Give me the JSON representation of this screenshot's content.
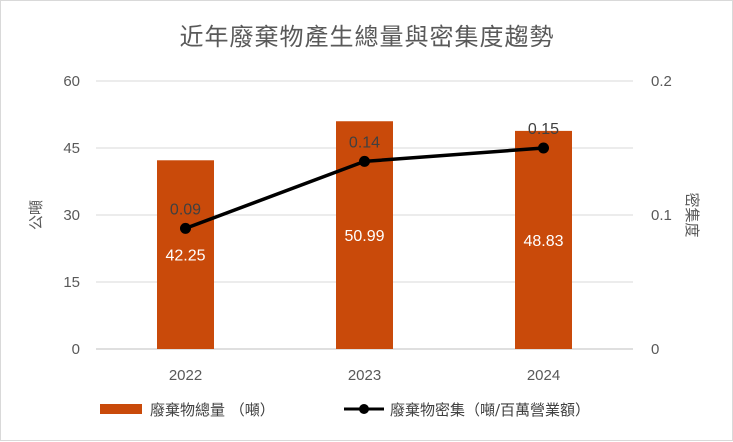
{
  "chart_data": {
    "type": "bar",
    "title": "近年廢棄物產生總量與密集度趨勢",
    "categories": [
      "2022",
      "2023",
      "2024"
    ],
    "ylabel": "公噸",
    "ylabel_right": "密集度",
    "ylim": [
      0,
      60
    ],
    "yticks": [
      "0",
      "15",
      "30",
      "45",
      "60"
    ],
    "ylim_right": [
      0,
      0.2
    ],
    "yticks_right": [
      "0",
      "0.1",
      "0.2"
    ],
    "grid": true,
    "legend_position": "bottom",
    "series": [
      {
        "name": "廢棄物總量 （噸）",
        "type": "bar",
        "axis": "left",
        "color": "#C94A0A",
        "values": [
          42.25,
          50.99,
          48.83
        ],
        "labels": [
          "42.25",
          "50.99",
          "48.83"
        ]
      },
      {
        "name": "廢棄物密集（噸/百萬營業額）",
        "type": "line",
        "axis": "right",
        "color": "#000000",
        "values": [
          0.09,
          0.14,
          0.15
        ],
        "labels": [
          "0.09",
          "0.14",
          "0.15"
        ]
      }
    ]
  }
}
